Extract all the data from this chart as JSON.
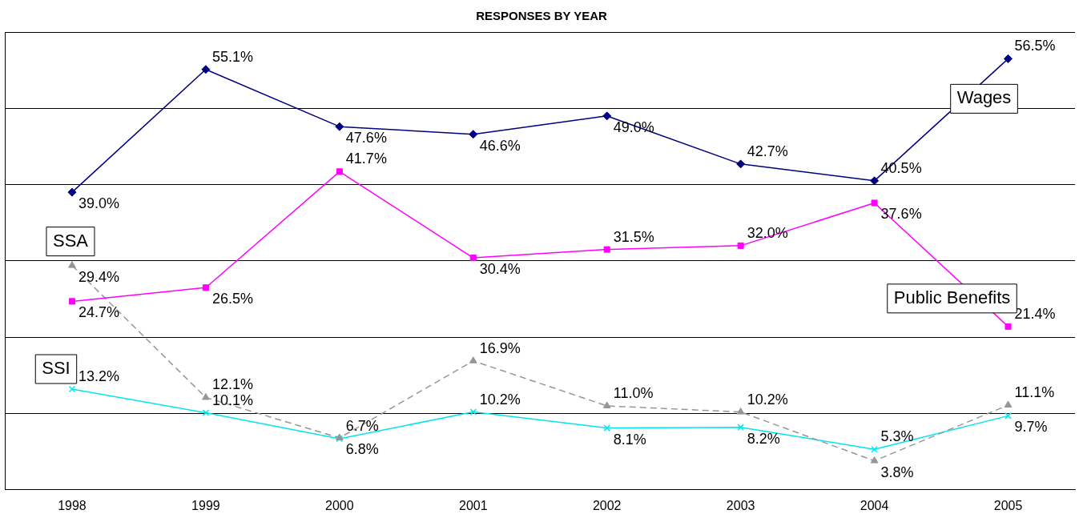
{
  "chart_data": {
    "type": "line",
    "title": "RESPONSES BY YEAR",
    "categories": [
      "1998",
      "1999",
      "2000",
      "2001",
      "2002",
      "2003",
      "2004",
      "2005"
    ],
    "series": [
      {
        "name": "Wages",
        "color": "#000080",
        "marker": "diamond",
        "line_style": "solid",
        "values": [
          39.0,
          55.1,
          47.6,
          46.6,
          49.0,
          42.7,
          40.5,
          56.5
        ],
        "value_labels": [
          "39.0%",
          "55.1%",
          "47.6%",
          "46.6%",
          "49.0%",
          "42.7%",
          "40.5%",
          "56.5%"
        ]
      },
      {
        "name": "Public Benefits",
        "color": "#ff00ff",
        "marker": "square",
        "line_style": "solid",
        "values": [
          24.7,
          26.5,
          41.7,
          30.4,
          31.5,
          32.0,
          37.6,
          21.4
        ],
        "value_labels": [
          "24.7%",
          "26.5%",
          "41.7%",
          "30.4%",
          "31.5%",
          "32.0%",
          "37.6%",
          "21.4%"
        ]
      },
      {
        "name": "SSA",
        "color": "#969696",
        "marker": "triangle",
        "line_style": "dashed",
        "values": [
          29.4,
          12.1,
          6.8,
          16.9,
          11.0,
          10.2,
          3.8,
          11.1
        ],
        "value_labels": [
          "29.4%",
          "12.1%",
          "6.8%",
          "16.9%",
          "11.0%",
          "10.2%",
          "3.8%",
          "11.1%"
        ]
      },
      {
        "name": "SSI",
        "color": "#00e5ee",
        "marker": "cross",
        "line_style": "solid",
        "values": [
          13.2,
          10.1,
          6.7,
          10.2,
          8.1,
          8.2,
          5.3,
          9.7
        ],
        "value_labels": [
          "13.2%",
          "10.1%",
          "6.7%",
          "10.2%",
          "8.1%",
          "8.2%",
          "5.3%",
          "9.7%"
        ]
      }
    ],
    "ylim": [
      0,
      60
    ],
    "yticks": [
      {
        "value": 0,
        "label": null
      },
      {
        "value": 10,
        "label": null
      },
      {
        "value": 20,
        "label": null
      },
      {
        "value": 30,
        "label": null
      },
      {
        "value": 40,
        "label": null
      },
      {
        "value": 50,
        "label": null
      },
      {
        "value": 60,
        "label": null
      }
    ],
    "grid": "y",
    "legend": false,
    "tick_labels": "x"
  }
}
